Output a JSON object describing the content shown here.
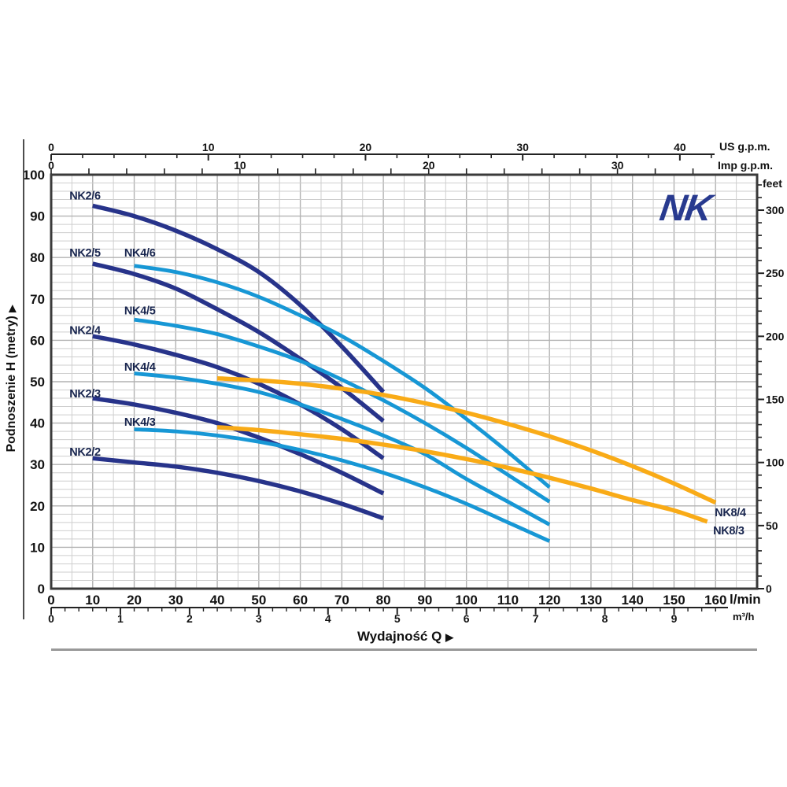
{
  "labels": {
    "logo": "NK",
    "y_title": "Podnoszenie H (metry)",
    "x_title": "Wydajność Q",
    "arrow": "▶",
    "unit_us": "US g.p.m.",
    "unit_imp": "Imp g.p.m.",
    "unit_feet": "feet",
    "unit_lmin": "l/min",
    "unit_m3h": "m³/h"
  },
  "colors": {
    "navy": "#27338a",
    "blue": "#1797d5",
    "orange": "#f9ab17",
    "logo_navy": "#283a8f",
    "grid_minor": "#cecece",
    "grid_major": "#b2b2b2",
    "frame": "#3a3a3a",
    "curve_label": "#19264f",
    "tick_text": "#131313"
  },
  "chart_data": {
    "type": "line",
    "title": "NK pump performance curves",
    "xlabel": "Wydajność Q",
    "ylabel": "Podnoszenie H (metry)",
    "x_axis_lmin": {
      "unit": "l/min",
      "min": 0,
      "max": 170,
      "tick_labels": [
        0,
        10,
        20,
        30,
        40,
        50,
        60,
        70,
        80,
        90,
        100,
        110,
        120,
        130,
        140,
        150,
        160
      ],
      "minor_step": 5
    },
    "x_axis_m3h": {
      "unit": "m³/h",
      "lmin_per_unit": 16.667,
      "tick_labels": [
        0,
        1,
        2,
        3,
        4,
        5,
        6,
        7,
        8,
        9
      ],
      "minor_step": 0.2
    },
    "x_axis_us": {
      "unit": "US g.p.m.",
      "lmin_per_unit": 3.785,
      "tick_labels": [
        0,
        10,
        20,
        30,
        40
      ],
      "minor_step": 2
    },
    "x_axis_imp": {
      "unit": "Imp g.p.m.",
      "lmin_per_unit": 4.546,
      "tick_labels": [
        0,
        10,
        20,
        30
      ],
      "minor_step": 2
    },
    "y_axis_m": {
      "unit": "m",
      "min": 0,
      "max": 100,
      "tick_labels": [
        0,
        10,
        20,
        30,
        40,
        50,
        60,
        70,
        80,
        90,
        100
      ],
      "minor_step": 2
    },
    "y_axis_feet": {
      "unit": "feet",
      "m_per_unit": 0.3048,
      "tick_labels": [
        0,
        50,
        100,
        150,
        200,
        250,
        300
      ],
      "minor_step": 10,
      "minor_max": 320
    },
    "series": [
      {
        "name": "NK2/6",
        "color": "navy",
        "label_pos": [
          4.4,
          94.0
        ],
        "points": [
          [
            10,
            92.5
          ],
          [
            20,
            90
          ],
          [
            30,
            86.5
          ],
          [
            40,
            82
          ],
          [
            50,
            76.5
          ],
          [
            60,
            68.5
          ],
          [
            70,
            58.5
          ],
          [
            80,
            47.5
          ]
        ]
      },
      {
        "name": "NK2/5",
        "color": "navy",
        "label_pos": [
          4.4,
          80.2
        ],
        "points": [
          [
            10,
            78.5
          ],
          [
            20,
            76
          ],
          [
            30,
            72.5
          ],
          [
            40,
            67.5
          ],
          [
            50,
            62
          ],
          [
            60,
            55.5
          ],
          [
            70,
            48.5
          ],
          [
            80,
            40.5
          ]
        ]
      },
      {
        "name": "NK4/6",
        "color": "blue",
        "label_pos": [
          17.6,
          80.2
        ],
        "points": [
          [
            20,
            78
          ],
          [
            30,
            76.5
          ],
          [
            40,
            74
          ],
          [
            50,
            70.5
          ],
          [
            60,
            66
          ],
          [
            70,
            61
          ],
          [
            80,
            55
          ],
          [
            90,
            48.5
          ],
          [
            100,
            41
          ],
          [
            110,
            33
          ],
          [
            120,
            24.5
          ]
        ]
      },
      {
        "name": "NK4/5",
        "color": "blue",
        "label_pos": [
          17.6,
          66.3
        ],
        "points": [
          [
            20,
            65
          ],
          [
            30,
            63.5
          ],
          [
            40,
            61.5
          ],
          [
            50,
            58.5
          ],
          [
            60,
            55
          ],
          [
            70,
            50.5
          ],
          [
            80,
            45.5
          ],
          [
            90,
            40
          ],
          [
            100,
            34
          ],
          [
            110,
            27.5
          ],
          [
            120,
            21
          ]
        ]
      },
      {
        "name": "NK2/4",
        "color": "navy",
        "label_pos": [
          4.4,
          61.5
        ],
        "points": [
          [
            10,
            61
          ],
          [
            20,
            59
          ],
          [
            30,
            56.5
          ],
          [
            40,
            53.5
          ],
          [
            50,
            49.5
          ],
          [
            60,
            44.5
          ],
          [
            70,
            38.5
          ],
          [
            80,
            31.5
          ]
        ]
      },
      {
        "name": "NK4/4",
        "color": "blue",
        "label_pos": [
          17.6,
          52.7
        ],
        "points": [
          [
            20,
            52
          ],
          [
            30,
            51
          ],
          [
            40,
            49.5
          ],
          [
            50,
            47.5
          ],
          [
            60,
            44.5
          ],
          [
            70,
            41
          ],
          [
            80,
            37
          ],
          [
            90,
            32.5
          ],
          [
            100,
            26.5
          ],
          [
            110,
            21
          ],
          [
            120,
            15.5
          ]
        ]
      },
      {
        "name": "NK2/3",
        "color": "navy",
        "label_pos": [
          4.4,
          46.2
        ],
        "points": [
          [
            10,
            46
          ],
          [
            20,
            44.5
          ],
          [
            30,
            42.5
          ],
          [
            40,
            40
          ],
          [
            50,
            36.5
          ],
          [
            60,
            32.5
          ],
          [
            70,
            28
          ],
          [
            80,
            23
          ]
        ]
      },
      {
        "name": "NK4/3",
        "color": "blue",
        "label_pos": [
          17.6,
          39.4
        ],
        "points": [
          [
            20,
            38.5
          ],
          [
            30,
            38
          ],
          [
            40,
            37
          ],
          [
            50,
            35.5
          ],
          [
            60,
            33.5
          ],
          [
            70,
            31
          ],
          [
            80,
            28
          ],
          [
            90,
            24.5
          ],
          [
            100,
            20.5
          ],
          [
            110,
            16
          ],
          [
            120,
            11.5
          ]
        ]
      },
      {
        "name": "NK2/2",
        "color": "navy",
        "label_pos": [
          4.4,
          32.1
        ],
        "points": [
          [
            10,
            31.5
          ],
          [
            20,
            30.5
          ],
          [
            30,
            29.5
          ],
          [
            40,
            28
          ],
          [
            50,
            26
          ],
          [
            60,
            23.5
          ],
          [
            70,
            20.5
          ],
          [
            80,
            17
          ]
        ]
      },
      {
        "name": "NK8/4",
        "color": "orange",
        "label_pos": [
          159.8,
          17.5
        ],
        "label_anchor": "start",
        "points": [
          [
            40,
            50.8
          ],
          [
            50,
            50.3
          ],
          [
            60,
            49.5
          ],
          [
            70,
            48.3
          ],
          [
            80,
            46.8
          ],
          [
            90,
            44.8
          ],
          [
            100,
            42.5
          ],
          [
            110,
            39.8
          ],
          [
            120,
            36.8
          ],
          [
            130,
            33.4
          ],
          [
            140,
            29.6
          ],
          [
            150,
            25.4
          ],
          [
            160,
            20.8
          ]
        ]
      },
      {
        "name": "NK8/3",
        "color": "orange",
        "label_pos": [
          159.4,
          13.1
        ],
        "label_anchor": "start",
        "points": [
          [
            40,
            39
          ],
          [
            50,
            38.3
          ],
          [
            60,
            37.3
          ],
          [
            70,
            36.2
          ],
          [
            80,
            34.8
          ],
          [
            90,
            33.2
          ],
          [
            100,
            31.3
          ],
          [
            110,
            29.2
          ],
          [
            120,
            26.8
          ],
          [
            130,
            24.2
          ],
          [
            140,
            21.4
          ],
          [
            150,
            18.9
          ],
          [
            158,
            16.2
          ]
        ]
      }
    ]
  }
}
